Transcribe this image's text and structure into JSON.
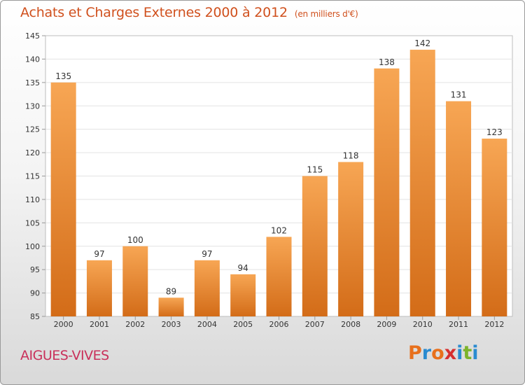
{
  "header": {
    "title": "Achats et Charges Externes 2000 à 2012",
    "unit": "(en milliers d'€)"
  },
  "footer": {
    "location": "AIGUES-VIVES",
    "logo_text": "Proxiti",
    "logo_colors": [
      "#e8701c",
      "#2a8bd0",
      "#e8701c",
      "#d62f2f",
      "#2a8bd0",
      "#7cb32b",
      "#2a8bd0"
    ]
  },
  "colors": {
    "bar_top": "#f7a654",
    "bar_bottom": "#d36c18",
    "title": "#d0501d",
    "location": "#c9305a"
  },
  "chart_data": {
    "type": "bar",
    "categories": [
      "2000",
      "2001",
      "2002",
      "2003",
      "2004",
      "2005",
      "2006",
      "2007",
      "2008",
      "2009",
      "2010",
      "2011",
      "2012"
    ],
    "values": [
      135,
      97,
      100,
      89,
      97,
      94,
      102,
      115,
      118,
      138,
      142,
      131,
      123
    ],
    "ylim": [
      85,
      145
    ],
    "yticks": [
      85,
      90,
      95,
      100,
      105,
      110,
      115,
      120,
      125,
      130,
      135,
      140,
      145
    ],
    "grid": "horizontal",
    "data_labels": true
  }
}
